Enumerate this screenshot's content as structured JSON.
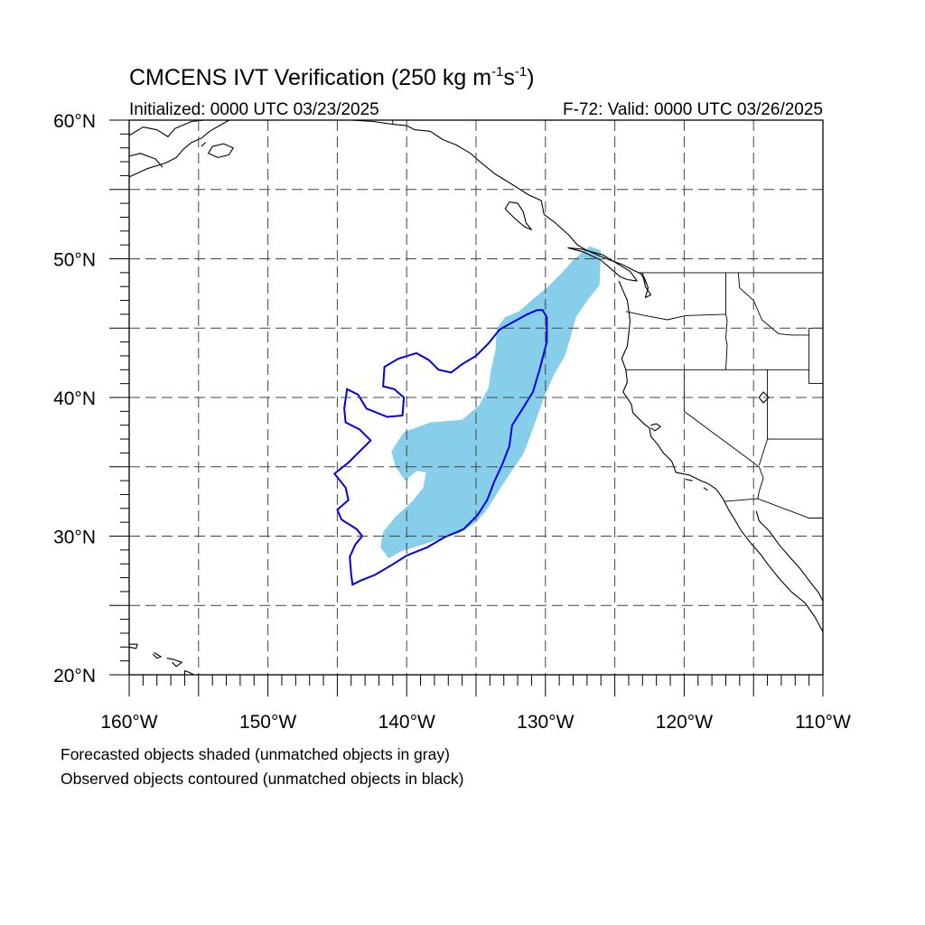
{
  "title": {
    "main": "CMCENS IVT Verification (250 kg m",
    "exp1": "-1",
    "mid": "s",
    "exp2": "-1",
    "close": ")"
  },
  "header": {
    "initialized": "Initialized: 0000 UTC 03/23/2025",
    "valid": "F-72: Valid: 0000 UTC 03/26/2025"
  },
  "axes": {
    "lat_labels": [
      {
        "value": 60,
        "text": "60°N"
      },
      {
        "value": 50,
        "text": "50°N"
      },
      {
        "value": 40,
        "text": "40°N"
      },
      {
        "value": 30,
        "text": "30°N"
      },
      {
        "value": 20,
        "text": "20°N"
      }
    ],
    "lon_labels": [
      {
        "value": -160,
        "text": "160°W"
      },
      {
        "value": -150,
        "text": "150°W"
      },
      {
        "value": -140,
        "text": "140°W"
      },
      {
        "value": -130,
        "text": "130°W"
      },
      {
        "value": -120,
        "text": "120°W"
      },
      {
        "value": -110,
        "text": "110°W"
      }
    ]
  },
  "extent": {
    "lon_min": -160,
    "lon_max": -110,
    "lat_min": 20,
    "lat_max": 60
  },
  "grid": {
    "lon_step": 5,
    "lat_step": 5
  },
  "legend": {
    "line1": "Forecasted objects shaded (unmatched objects in gray)",
    "line2": "Observed objects contoured (unmatched objects in black)"
  },
  "colors": {
    "forecast_fill": "#87ceeb",
    "observed_contour": "#0000e6",
    "coast": "#000000",
    "grid": "#444444"
  },
  "forecast_object": {
    "lonlat": [
      [
        -126.8,
        50.9
      ],
      [
        -126.0,
        50.6
      ],
      [
        -126.1,
        48.1
      ],
      [
        -126.9,
        47.1
      ],
      [
        -127.8,
        45.8
      ],
      [
        -128.2,
        44.3
      ],
      [
        -128.6,
        43.0
      ],
      [
        -129.4,
        41.6
      ],
      [
        -130.1,
        40.0
      ],
      [
        -130.6,
        38.6
      ],
      [
        -131.1,
        37.2
      ],
      [
        -131.6,
        35.9
      ],
      [
        -132.3,
        34.9
      ],
      [
        -132.9,
        34.0
      ],
      [
        -133.6,
        32.9
      ],
      [
        -134.3,
        31.8
      ],
      [
        -135.0,
        31.0
      ],
      [
        -136.2,
        30.2
      ],
      [
        -137.6,
        29.8
      ],
      [
        -139.1,
        29.3
      ],
      [
        -140.4,
        28.9
      ],
      [
        -141.3,
        28.4
      ],
      [
        -141.9,
        29.2
      ],
      [
        -141.7,
        30.3
      ],
      [
        -140.8,
        31.4
      ],
      [
        -139.6,
        32.5
      ],
      [
        -138.8,
        33.5
      ],
      [
        -138.6,
        34.6
      ],
      [
        -139.3,
        34.7
      ],
      [
        -140.1,
        34.0
      ],
      [
        -140.8,
        35.0
      ],
      [
        -141.1,
        36.1
      ],
      [
        -140.2,
        37.5
      ],
      [
        -138.3,
        38.2
      ],
      [
        -136.0,
        38.4
      ],
      [
        -134.8,
        39.4
      ],
      [
        -134.1,
        40.7
      ],
      [
        -133.9,
        42.1
      ],
      [
        -133.6,
        43.4
      ],
      [
        -133.5,
        45.0
      ],
      [
        -132.9,
        45.8
      ],
      [
        -131.9,
        46.2
      ],
      [
        -130.9,
        47.1
      ],
      [
        -129.9,
        47.9
      ],
      [
        -128.9,
        48.9
      ],
      [
        -128.0,
        49.9
      ],
      [
        -127.2,
        50.6
      ]
    ]
  },
  "observed_object": {
    "lonlat": [
      [
        -130.2,
        46.3
      ],
      [
        -129.9,
        45.8
      ],
      [
        -129.9,
        44.0
      ],
      [
        -130.4,
        42.1
      ],
      [
        -130.9,
        40.4
      ],
      [
        -131.7,
        39.1
      ],
      [
        -132.4,
        38.0
      ],
      [
        -132.6,
        36.5
      ],
      [
        -133.1,
        35.2
      ],
      [
        -133.7,
        33.9
      ],
      [
        -134.2,
        32.6
      ],
      [
        -134.9,
        31.5
      ],
      [
        -135.9,
        30.5
      ],
      [
        -137.3,
        29.9
      ],
      [
        -138.5,
        29.2
      ],
      [
        -140.0,
        28.6
      ],
      [
        -141.1,
        27.9
      ],
      [
        -142.3,
        27.2
      ],
      [
        -143.3,
        26.8
      ],
      [
        -143.9,
        26.5
      ],
      [
        -144.0,
        27.2
      ],
      [
        -144.1,
        28.5
      ],
      [
        -143.7,
        29.4
      ],
      [
        -143.2,
        30.0
      ],
      [
        -143.6,
        30.5
      ],
      [
        -144.7,
        31.2
      ],
      [
        -145.0,
        31.9
      ],
      [
        -144.2,
        32.6
      ],
      [
        -144.4,
        33.5
      ],
      [
        -145.2,
        34.5
      ],
      [
        -144.2,
        35.3
      ],
      [
        -143.5,
        36.0
      ],
      [
        -142.6,
        36.9
      ],
      [
        -143.4,
        37.7
      ],
      [
        -144.4,
        38.2
      ],
      [
        -144.5,
        39.2
      ],
      [
        -144.3,
        40.6
      ],
      [
        -143.5,
        40.2
      ],
      [
        -142.9,
        39.2
      ],
      [
        -141.4,
        38.6
      ],
      [
        -140.3,
        38.7
      ],
      [
        -140.2,
        40.0
      ],
      [
        -140.9,
        40.6
      ],
      [
        -141.7,
        40.8
      ],
      [
        -141.6,
        42.2
      ],
      [
        -140.6,
        42.8
      ],
      [
        -139.3,
        43.2
      ],
      [
        -138.4,
        42.7
      ],
      [
        -137.7,
        42.0
      ],
      [
        -136.8,
        41.8
      ],
      [
        -136.0,
        42.4
      ],
      [
        -135.0,
        43.0
      ],
      [
        -134.1,
        43.9
      ],
      [
        -133.3,
        44.9
      ],
      [
        -132.4,
        45.4
      ],
      [
        -131.3,
        46.0
      ],
      [
        -130.6,
        46.3
      ]
    ]
  },
  "coastlines": [
    [
      [
        -160,
        58.9
      ],
      [
        -159,
        59.5
      ],
      [
        -158,
        59.3
      ],
      [
        -157.2,
        58.8
      ],
      [
        -156.7,
        59.4
      ],
      [
        -155.5,
        59.9
      ],
      [
        -154.6,
        60
      ],
      [
        -153.5,
        60
      ]
    ],
    [
      [
        -160,
        55.9
      ],
      [
        -158.7,
        56.5
      ],
      [
        -157.4,
        56.9
      ],
      [
        -156.6,
        57.3
      ],
      [
        -156.1,
        57.9
      ],
      [
        -155.5,
        58.4
      ],
      [
        -154.8,
        58.7
      ],
      [
        -154.2,
        59.2
      ],
      [
        -153.5,
        59.6
      ],
      [
        -152.8,
        60
      ]
    ],
    [
      [
        -154.3,
        57.6
      ],
      [
        -153.6,
        57.3
      ],
      [
        -152.8,
        57.5
      ],
      [
        -152.5,
        58.0
      ],
      [
        -153.2,
        58.3
      ],
      [
        -154.0,
        58.1
      ],
      [
        -154.3,
        57.6
      ]
    ],
    [
      [
        -154.8,
        58.1
      ],
      [
        -154.5,
        58.4
      ]
    ],
    [
      [
        -146.1,
        60
      ],
      [
        -145.3,
        60
      ],
      [
        -144,
        60
      ],
      [
        -142.4,
        59.9
      ],
      [
        -141,
        59.7
      ],
      [
        -140,
        59.6
      ],
      [
        -139.4,
        59.3
      ],
      [
        -138.3,
        59.2
      ],
      [
        -137.4,
        58.6
      ],
      [
        -136.4,
        58.2
      ],
      [
        -135.4,
        57.6
      ],
      [
        -134.6,
        56.9
      ],
      [
        -133.6,
        56.1
      ],
      [
        -132.3,
        55.3
      ],
      [
        -131.2,
        54.6
      ],
      [
        -130.3,
        54.2
      ],
      [
        -130.1,
        53.2
      ],
      [
        -129.3,
        52.6
      ],
      [
        -128.3,
        51.7
      ],
      [
        -127.7,
        51.0
      ],
      [
        -127.0,
        50.6
      ],
      [
        -125.6,
        50.0
      ],
      [
        -124.5,
        49.6
      ],
      [
        -123.5,
        49.1
      ],
      [
        -123.1,
        48.9
      ],
      [
        -122.7,
        48.2
      ]
    ],
    [
      [
        -132.6,
        54.1
      ],
      [
        -132.0,
        54.0
      ],
      [
        -131.6,
        53.4
      ],
      [
        -131.4,
        52.6
      ],
      [
        -131.0,
        52.1
      ],
      [
        -131.5,
        52.3
      ],
      [
        -132.2,
        52.9
      ],
      [
        -132.9,
        53.6
      ],
      [
        -132.6,
        54.1
      ]
    ],
    [
      [
        -128.4,
        50.8
      ],
      [
        -127.3,
        50.5
      ],
      [
        -126.0,
        49.9
      ],
      [
        -125.3,
        49.3
      ],
      [
        -124.6,
        48.7
      ],
      [
        -124.1,
        48.5
      ],
      [
        -123.4,
        48.4
      ],
      [
        -123.9,
        49.1
      ],
      [
        -124.9,
        49.7
      ],
      [
        -125.9,
        50.3
      ],
      [
        -127.4,
        50.7
      ],
      [
        -128.4,
        50.8
      ]
    ],
    [
      [
        -124.7,
        48.4
      ],
      [
        -124.5,
        47.9
      ],
      [
        -124.1,
        47.0
      ],
      [
        -124.0,
        46.3
      ],
      [
        -123.9,
        45.5
      ],
      [
        -124.0,
        44.6
      ],
      [
        -124.1,
        43.7
      ],
      [
        -124.5,
        42.8
      ],
      [
        -124.2,
        42.0
      ],
      [
        -124.1,
        41.1
      ],
      [
        -124.4,
        40.4
      ],
      [
        -123.8,
        39.5
      ],
      [
        -123.7,
        38.9
      ],
      [
        -122.9,
        38.1
      ],
      [
        -122.5,
        37.8
      ],
      [
        -122.4,
        37.2
      ],
      [
        -121.9,
        36.6
      ],
      [
        -121.5,
        36.0
      ],
      [
        -120.9,
        35.4
      ],
      [
        -120.6,
        34.6
      ],
      [
        -119.6,
        34.4
      ],
      [
        -118.8,
        34.0
      ],
      [
        -118.3,
        33.8
      ],
      [
        -117.7,
        33.4
      ],
      [
        -117.2,
        32.7
      ],
      [
        -116.8,
        31.9
      ],
      [
        -116.3,
        31.1
      ],
      [
        -115.9,
        30.4
      ],
      [
        -115.2,
        29.5
      ],
      [
        -114.5,
        28.7
      ],
      [
        -114.0,
        28.0
      ],
      [
        -113.2,
        27.0
      ],
      [
        -112.3,
        26.0
      ],
      [
        -111.3,
        25.2
      ],
      [
        -110.6,
        24.2
      ],
      [
        -110.0,
        23.1
      ]
    ],
    [
      [
        -114.8,
        31.8
      ],
      [
        -114.6,
        31.1
      ],
      [
        -113.9,
        30.4
      ],
      [
        -113.1,
        29.3
      ],
      [
        -112.4,
        28.5
      ],
      [
        -111.6,
        27.6
      ],
      [
        -111.0,
        26.8
      ],
      [
        -110.3,
        25.9
      ],
      [
        -110.0,
        25.3
      ]
    ],
    [
      [
        -122.4,
        38.0
      ],
      [
        -122.0,
        38.1
      ],
      [
        -121.7,
        37.9
      ],
      [
        -122.1,
        37.6
      ],
      [
        -122.4,
        37.8
      ]
    ],
    [
      [
        -123.0,
        49.0
      ],
      [
        -122.8,
        48.0
      ],
      [
        -122.4,
        47.4
      ],
      [
        -122.8,
        47.2
      ],
      [
        -122.6,
        47.9
      ],
      [
        -122.9,
        48.7
      ]
    ],
    [
      [
        -160,
        22.2
      ],
      [
        -159.4,
        22.2
      ],
      [
        -159.5,
        21.9
      ],
      [
        -160,
        22.0
      ]
    ],
    [
      [
        -158.2,
        21.6
      ],
      [
        -157.7,
        21.3
      ],
      [
        -158.0,
        21.2
      ],
      [
        -158.3,
        21.5
      ]
    ],
    [
      [
        -157.3,
        21.2
      ],
      [
        -156.8,
        21.1
      ],
      [
        -156.2,
        20.9
      ],
      [
        -156.6,
        20.6
      ],
      [
        -156.9,
        20.9
      ]
    ],
    [
      [
        -156.0,
        20.3
      ],
      [
        -155.5,
        20.1
      ],
      [
        -154.8,
        19.6
      ],
      [
        -155.6,
        18.9
      ],
      [
        -156.0,
        19.7
      ],
      [
        -156.0,
        20.3
      ]
    ],
    [
      [
        -118.6,
        33.5
      ],
      [
        -118.3,
        33.3
      ]
    ],
    [
      [
        -119.9,
        34.1
      ],
      [
        -119.4,
        34.0
      ]
    ],
    [
      [
        -114.3,
        39.6
      ],
      [
        -113.9,
        40.0
      ],
      [
        -114.3,
        40.4
      ],
      [
        -114.6,
        40.0
      ],
      [
        -114.3,
        39.6
      ]
    ],
    [
      [
        -160,
        57.4
      ],
      [
        -159.2,
        57.6
      ],
      [
        -158.1,
        57.2
      ],
      [
        -157.6,
        56.6
      ]
    ]
  ],
  "borders": [
    [
      [
        -123.3,
        49.0
      ],
      [
        -110.0,
        49.0
      ]
    ],
    [
      [
        -141.0,
        60.0
      ],
      [
        -141.0,
        59.7
      ]
    ],
    [
      [
        -117.1,
        32.5
      ],
      [
        -114.7,
        32.7
      ],
      [
        -111.0,
        31.3
      ],
      [
        -110.0,
        31.3
      ]
    ],
    [
      [
        -124.2,
        46.2
      ],
      [
        -122.8,
        45.9
      ],
      [
        -121.2,
        45.6
      ],
      [
        -119.9,
        45.9
      ],
      [
        -117.0,
        46.0
      ]
    ],
    [
      [
        -117.0,
        49.0
      ],
      [
        -117.0,
        46.0
      ],
      [
        -116.9,
        45.6
      ],
      [
        -117.0,
        44.3
      ],
      [
        -116.9,
        43.8
      ],
      [
        -117.0,
        42.0
      ]
    ],
    [
      [
        -124.2,
        42.0
      ],
      [
        -120.0,
        42.0
      ],
      [
        -111.0,
        42.0
      ]
    ],
    [
      [
        -120.0,
        42.0
      ],
      [
        -120.0,
        39.0
      ],
      [
        -114.6,
        35.0
      ]
    ],
    [
      [
        -114.0,
        42.0
      ],
      [
        -114.0,
        37.0
      ],
      [
        -114.6,
        35.1
      ]
    ],
    [
      [
        -111.0,
        45.0
      ],
      [
        -111.0,
        41.0
      ],
      [
        -110.0,
        41.0
      ]
    ],
    [
      [
        -114.0,
        37.0
      ],
      [
        -110.0,
        37.0
      ]
    ],
    [
      [
        -116.1,
        49.0
      ],
      [
        -116.0,
        47.9
      ],
      [
        -115.0,
        47.0
      ],
      [
        -114.4,
        45.6
      ],
      [
        -113.2,
        44.6
      ],
      [
        -112.3,
        44.5
      ],
      [
        -111.0,
        44.5
      ]
    ],
    [
      [
        -111.0,
        45.0
      ],
      [
        -110.0,
        45.0
      ]
    ],
    [
      [
        -114.7,
        32.7
      ],
      [
        -114.6,
        33.2
      ],
      [
        -114.3,
        34.2
      ],
      [
        -114.6,
        35.0
      ]
    ]
  ]
}
